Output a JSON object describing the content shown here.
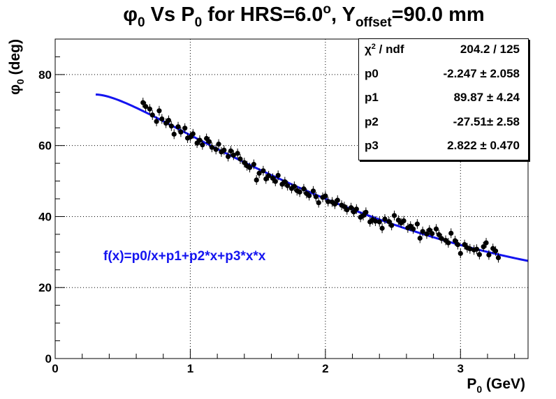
{
  "chart_data": {
    "type": "scatter",
    "title": {
      "phi": "φ",
      "phi_sub": "0",
      "mid": " Vs P",
      "p_sub": "0",
      "hrs": " for HRS=6.0",
      "deg": "o",
      "y": ", Y",
      "y_sub": "offset",
      "tail": "=90.0 mm"
    },
    "xlabel": {
      "main": "P",
      "sub": "0",
      "unit": " (GeV)"
    },
    "ylabel": {
      "main": "φ",
      "sub": "0",
      "unit": " (deg)"
    },
    "xlim": [
      0,
      3.5
    ],
    "ylim": [
      0,
      90
    ],
    "x_ticks": [
      "0",
      "1",
      "2",
      "3"
    ],
    "y_ticks": [
      "0",
      "20",
      "40",
      "60",
      "80"
    ],
    "grid": true,
    "stats": [
      {
        "key": "χ",
        "sup": "2",
        "rest": " / ndf",
        "value": "204.2 / 125"
      },
      {
        "key": "p0",
        "sup": "",
        "rest": "",
        "value": "-2.247 ± 2.058"
      },
      {
        "key": "p1",
        "sup": "",
        "rest": "",
        "value": "89.87 ± 4.24"
      },
      {
        "key": "p2",
        "sup": "",
        "rest": "",
        "value": "-27.51± 2.58"
      },
      {
        "key": "p3",
        "sup": "",
        "rest": "",
        "value": "2.822 ± 0.470"
      }
    ],
    "fit_formula": "f(x)=p0/x+p1+p2*x+p3*x*x",
    "fit_params": {
      "p0": -2.247,
      "p1": 89.87,
      "p2": -27.51,
      "p3": 2.822
    },
    "fit_range": [
      0.3,
      3.5
    ],
    "fit_color": "#1414f0",
    "marker_color": "#000000",
    "series": [
      {
        "x": [
          0.65,
          0.67,
          0.7,
          0.72,
          0.75,
          0.77,
          0.79,
          0.82,
          0.84,
          0.86,
          0.88,
          0.91,
          0.93,
          0.96,
          0.98,
          1.0,
          1.02,
          1.05,
          1.07,
          1.09,
          1.12,
          1.14,
          1.16,
          1.19,
          1.21,
          1.23,
          1.25,
          1.28,
          1.3,
          1.32,
          1.35,
          1.37,
          1.4,
          1.42,
          1.44,
          1.47,
          1.49,
          1.51,
          1.54,
          1.56,
          1.58,
          1.61,
          1.63,
          1.65,
          1.68,
          1.7,
          1.72,
          1.75,
          1.77,
          1.79,
          1.81,
          1.84,
          1.86,
          1.88,
          1.91,
          1.93,
          1.95,
          1.98,
          2.0,
          2.02,
          2.05,
          2.07,
          2.09,
          2.12,
          2.14,
          2.16,
          2.19,
          2.21,
          2.23,
          2.26,
          2.28,
          2.3,
          2.33,
          2.35,
          2.37,
          2.4,
          2.42,
          2.44,
          2.47,
          2.49,
          2.51,
          2.54,
          2.56,
          2.58,
          2.61,
          2.63,
          2.65,
          2.68,
          2.7,
          2.72,
          2.75,
          2.77,
          2.79,
          2.82,
          2.84,
          2.86,
          2.89,
          2.91,
          2.93,
          2.96,
          2.98,
          3.0,
          3.03,
          3.05,
          3.07,
          3.1,
          3.12,
          3.14,
          3.17,
          3.19,
          3.21,
          3.24,
          3.26,
          3.28
        ],
        "y": [
          72.1,
          71.0,
          70.3,
          68.6,
          66.8,
          69.8,
          67.5,
          66.3,
          67.1,
          65.5,
          63.2,
          65.3,
          63.8,
          64.9,
          62.1,
          62.4,
          63.3,
          60.7,
          61.5,
          60.2,
          62.0,
          61.1,
          59.5,
          58.9,
          60.4,
          58.2,
          58.7,
          56.9,
          58.5,
          57.3,
          57.8,
          56.2,
          55.2,
          54.3,
          53.8,
          54.7,
          50.3,
          52.2,
          52.9,
          50.6,
          51.5,
          50.8,
          49.9,
          51.6,
          49.1,
          49.8,
          48.7,
          47.9,
          48.5,
          47.3,
          46.9,
          47.8,
          46.5,
          45.9,
          47.2,
          45.6,
          43.9,
          45.4,
          45.8,
          44.2,
          44.1,
          43.5,
          44.6,
          43.2,
          42.8,
          41.9,
          42.5,
          41.3,
          42.1,
          39.8,
          40.3,
          41.2,
          38.5,
          39.1,
          38.7,
          38.5,
          36.7,
          39.3,
          38.6,
          37.5,
          40.3,
          39.0,
          38.2,
          38.8,
          36.8,
          37.3,
          36.5,
          37.9,
          33.9,
          35.8,
          35.1,
          36.2,
          35.2,
          36.5,
          34.9,
          33.8,
          33.3,
          32.6,
          35.3,
          33.2,
          32.1,
          29.6,
          32.1,
          31.2,
          30.9,
          30.6,
          30.8,
          29.3,
          31.5,
          32.6,
          29.2,
          31.0,
          30.3,
          28.4
        ]
      }
    ]
  }
}
